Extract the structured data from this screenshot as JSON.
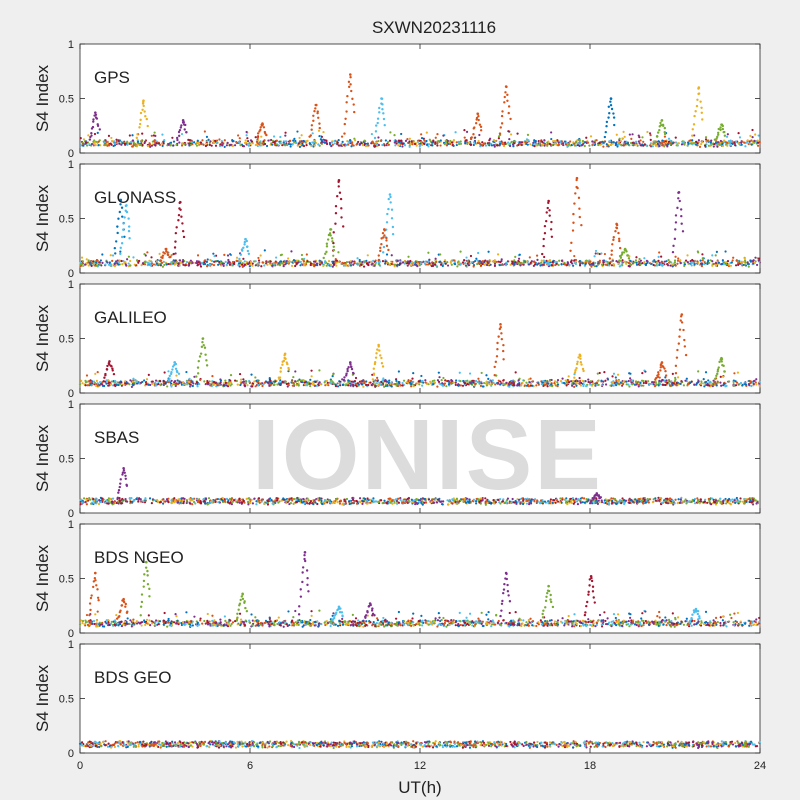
{
  "title": "SXWN20231116",
  "watermark": "IONISE",
  "xlabel": "UT(h)",
  "colors": [
    "#0072BD",
    "#D95319",
    "#EDB120",
    "#7E2F8E",
    "#77AC30",
    "#4DBEEE",
    "#A2142F"
  ],
  "chart_data": [
    {
      "type": "scatter",
      "panel_label": "GPS",
      "ylabel": "S4 Index",
      "xlim": [
        0,
        24
      ],
      "ylim": [
        0,
        1
      ],
      "yticks": [
        0,
        0.5,
        1
      ],
      "xticks": [
        0,
        6,
        12,
        18,
        24
      ],
      "baseline": 0.08,
      "spikes": [
        {
          "x": 0.5,
          "y": 0.37,
          "color": "#7E2F8E"
        },
        {
          "x": 2.2,
          "y": 0.48,
          "color": "#EDB120"
        },
        {
          "x": 3.6,
          "y": 0.3,
          "color": "#7E2F8E"
        },
        {
          "x": 6.4,
          "y": 0.27,
          "color": "#D95319"
        },
        {
          "x": 8.3,
          "y": 0.44,
          "color": "#D95319"
        },
        {
          "x": 9.5,
          "y": 0.72,
          "color": "#D95319"
        },
        {
          "x": 10.6,
          "y": 0.5,
          "color": "#4DBEEE"
        },
        {
          "x": 14.0,
          "y": 0.36,
          "color": "#D95319"
        },
        {
          "x": 15.0,
          "y": 0.61,
          "color": "#D95319"
        },
        {
          "x": 18.7,
          "y": 0.5,
          "color": "#0072BD"
        },
        {
          "x": 20.5,
          "y": 0.3,
          "color": "#77AC30"
        },
        {
          "x": 21.8,
          "y": 0.6,
          "color": "#EDB120"
        },
        {
          "x": 22.6,
          "y": 0.26,
          "color": "#77AC30"
        }
      ]
    },
    {
      "type": "scatter",
      "panel_label": "GLONASS",
      "ylabel": "S4 Index",
      "xlim": [
        0,
        24
      ],
      "ylim": [
        0,
        1
      ],
      "yticks": [
        0,
        0.5,
        1
      ],
      "xticks": [
        0,
        6,
        12,
        18,
        24
      ],
      "baseline": 0.08,
      "spikes": [
        {
          "x": 1.4,
          "y": 0.67,
          "color": "#0072BD"
        },
        {
          "x": 1.6,
          "y": 0.62,
          "color": "#4DBEEE"
        },
        {
          "x": 3.0,
          "y": 0.22,
          "color": "#D95319"
        },
        {
          "x": 3.5,
          "y": 0.65,
          "color": "#A2142F"
        },
        {
          "x": 5.8,
          "y": 0.31,
          "color": "#4DBEEE"
        },
        {
          "x": 9.1,
          "y": 0.85,
          "color": "#A2142F"
        },
        {
          "x": 8.8,
          "y": 0.4,
          "color": "#77AC30"
        },
        {
          "x": 10.9,
          "y": 0.72,
          "color": "#4DBEEE"
        },
        {
          "x": 10.7,
          "y": 0.4,
          "color": "#D95319"
        },
        {
          "x": 16.5,
          "y": 0.66,
          "color": "#A2142F"
        },
        {
          "x": 17.5,
          "y": 0.87,
          "color": "#D95319"
        },
        {
          "x": 18.9,
          "y": 0.45,
          "color": "#D95319"
        },
        {
          "x": 19.2,
          "y": 0.22,
          "color": "#77AC30"
        },
        {
          "x": 21.1,
          "y": 0.74,
          "color": "#7E2F8E"
        }
      ]
    },
    {
      "type": "scatter",
      "panel_label": "GALILEO",
      "ylabel": "S4 Index",
      "xlim": [
        0,
        24
      ],
      "ylim": [
        0,
        1
      ],
      "yticks": [
        0,
        0.5,
        1
      ],
      "xticks": [
        0,
        6,
        12,
        18,
        24
      ],
      "baseline": 0.08,
      "spikes": [
        {
          "x": 1.0,
          "y": 0.29,
          "color": "#A2142F"
        },
        {
          "x": 3.3,
          "y": 0.28,
          "color": "#4DBEEE"
        },
        {
          "x": 4.3,
          "y": 0.5,
          "color": "#77AC30"
        },
        {
          "x": 7.2,
          "y": 0.36,
          "color": "#EDB120"
        },
        {
          "x": 9.5,
          "y": 0.28,
          "color": "#7E2F8E"
        },
        {
          "x": 10.5,
          "y": 0.44,
          "color": "#EDB120"
        },
        {
          "x": 14.8,
          "y": 0.63,
          "color": "#D95319"
        },
        {
          "x": 17.6,
          "y": 0.35,
          "color": "#EDB120"
        },
        {
          "x": 20.5,
          "y": 0.28,
          "color": "#D95319"
        },
        {
          "x": 21.2,
          "y": 0.72,
          "color": "#D95319"
        },
        {
          "x": 22.6,
          "y": 0.32,
          "color": "#77AC30"
        }
      ]
    },
    {
      "type": "scatter",
      "panel_label": "SBAS",
      "ylabel": "S4 Index",
      "xlim": [
        0,
        24
      ],
      "ylim": [
        0,
        1
      ],
      "yticks": [
        0,
        0.5,
        1
      ],
      "xticks": [
        0,
        6,
        12,
        18,
        24
      ],
      "baseline": 0.1,
      "spikes": [
        {
          "x": 1.5,
          "y": 0.41,
          "color": "#7E2F8E"
        },
        {
          "x": 18.2,
          "y": 0.18,
          "color": "#7E2F8E"
        }
      ]
    },
    {
      "type": "scatter",
      "panel_label": "BDS NGEO",
      "ylabel": "S4 Index",
      "xlim": [
        0,
        24
      ],
      "ylim": [
        0,
        1
      ],
      "yticks": [
        0,
        0.5,
        1
      ],
      "xticks": [
        0,
        6,
        12,
        18,
        24
      ],
      "baseline": 0.08,
      "spikes": [
        {
          "x": 0.5,
          "y": 0.55,
          "color": "#D95319"
        },
        {
          "x": 1.5,
          "y": 0.31,
          "color": "#D95319"
        },
        {
          "x": 2.3,
          "y": 0.65,
          "color": "#77AC30"
        },
        {
          "x": 5.7,
          "y": 0.36,
          "color": "#77AC30"
        },
        {
          "x": 7.9,
          "y": 0.74,
          "color": "#7E2F8E"
        },
        {
          "x": 9.1,
          "y": 0.24,
          "color": "#4DBEEE"
        },
        {
          "x": 10.2,
          "y": 0.27,
          "color": "#7E2F8E"
        },
        {
          "x": 15.0,
          "y": 0.55,
          "color": "#7E2F8E"
        },
        {
          "x": 16.5,
          "y": 0.43,
          "color": "#77AC30"
        },
        {
          "x": 18.0,
          "y": 0.52,
          "color": "#A2142F"
        },
        {
          "x": 21.7,
          "y": 0.22,
          "color": "#4DBEEE"
        }
      ]
    },
    {
      "type": "scatter",
      "panel_label": "BDS GEO",
      "ylabel": "S4 Index",
      "xlim": [
        0,
        24
      ],
      "ylim": [
        0,
        1
      ],
      "yticks": [
        0,
        0.5,
        1
      ],
      "xticks": [
        0,
        6,
        12,
        18,
        24
      ],
      "baseline": 0.07,
      "spikes": []
    }
  ]
}
